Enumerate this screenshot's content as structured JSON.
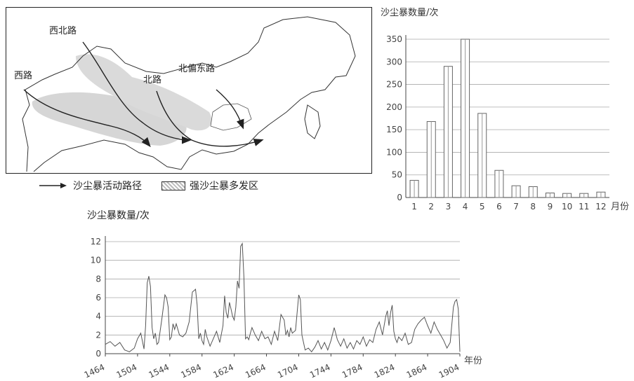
{
  "map": {
    "route_labels": [
      "西北路",
      "西路",
      "北路",
      "北偏东路"
    ],
    "legend": {
      "route_label": "沙尘暴活动路径",
      "area_label": "强沙尘暴多发区"
    }
  },
  "chart_data": [
    {
      "type": "bar",
      "ylabel": "沙尘暴数量/次",
      "xunit": "月份",
      "categories": [
        "1",
        "2",
        "3",
        "4",
        "5",
        "6",
        "7",
        "8",
        "9",
        "10",
        "11",
        "12"
      ],
      "values": [
        38,
        168,
        290,
        350,
        186,
        60,
        26,
        24,
        10,
        9,
        9,
        12
      ],
      "ylim": [
        0,
        350
      ],
      "yticks": [
        0,
        50,
        100,
        150,
        200,
        250,
        300,
        350
      ],
      "grid": true
    },
    {
      "type": "line",
      "ylabel": "沙尘暴数量/次",
      "xunit": "年份",
      "xticks": [
        1464,
        1504,
        1544,
        1584,
        1624,
        1664,
        1704,
        1744,
        1784,
        1824,
        1864,
        1904
      ],
      "yticks": [
        0,
        2,
        4,
        6,
        8,
        10,
        12
      ],
      "ylim": [
        0,
        12
      ],
      "xlim": [
        1464,
        1904
      ],
      "grid": true,
      "x": [
        1464,
        1470,
        1476,
        1482,
        1488,
        1494,
        1500,
        1504,
        1508,
        1512,
        1514,
        1516,
        1518,
        1520,
        1522,
        1524,
        1526,
        1528,
        1530,
        1534,
        1538,
        1540,
        1542,
        1544,
        1546,
        1548,
        1550,
        1552,
        1556,
        1560,
        1564,
        1568,
        1572,
        1576,
        1578,
        1580,
        1582,
        1584,
        1586,
        1588,
        1590,
        1594,
        1598,
        1602,
        1606,
        1610,
        1612,
        1614,
        1616,
        1618,
        1620,
        1622,
        1624,
        1626,
        1628,
        1630,
        1632,
        1634,
        1636,
        1638,
        1640,
        1642,
        1644,
        1646,
        1650,
        1654,
        1658,
        1662,
        1666,
        1670,
        1674,
        1678,
        1682,
        1686,
        1688,
        1690,
        1692,
        1694,
        1696,
        1700,
        1702,
        1704,
        1706,
        1708,
        1710,
        1712,
        1716,
        1720,
        1724,
        1728,
        1732,
        1736,
        1740,
        1744,
        1748,
        1752,
        1756,
        1760,
        1764,
        1768,
        1772,
        1776,
        1780,
        1784,
        1788,
        1792,
        1796,
        1800,
        1804,
        1808,
        1812,
        1814,
        1816,
        1818,
        1820,
        1822,
        1824,
        1826,
        1828,
        1832,
        1836,
        1840,
        1844,
        1848,
        1852,
        1856,
        1860,
        1864,
        1868,
        1872,
        1876,
        1880,
        1884,
        1888,
        1892,
        1896,
        1898,
        1900,
        1902,
        1904
      ],
      "y": [
        1.0,
        1.3,
        0.8,
        1.2,
        0.4,
        0.2,
        0.6,
        1.6,
        2.2,
        0.5,
        3.0,
        7.6,
        8.3,
        7.2,
        2.8,
        1.6,
        2.2,
        1.0,
        1.2,
        3.6,
        6.3,
        6.0,
        5.0,
        1.5,
        1.8,
        3.2,
        2.6,
        3.2,
        2.0,
        1.8,
        2.2,
        3.4,
        6.6,
        6.9,
        5.2,
        1.6,
        2.2,
        1.4,
        1.0,
        2.6,
        1.8,
        0.8,
        1.6,
        2.4,
        1.2,
        3.0,
        6.2,
        4.4,
        3.8,
        5.5,
        4.8,
        4.0,
        3.6,
        5.0,
        7.8,
        7.0,
        11.5,
        11.8,
        8.2,
        1.6,
        1.8,
        1.5,
        2.2,
        2.8,
        2.0,
        1.4,
        2.4,
        1.6,
        1.8,
        1.0,
        2.4,
        1.4,
        4.2,
        3.6,
        2.0,
        2.5,
        1.8,
        2.8,
        2.2,
        2.5,
        4.4,
        6.3,
        5.8,
        2.0,
        1.2,
        0.4,
        0.6,
        0.2,
        0.7,
        1.4,
        0.5,
        1.2,
        0.4,
        1.4,
        2.8,
        1.5,
        0.8,
        1.6,
        0.6,
        1.2,
        0.5,
        1.4,
        1.0,
        1.8,
        0.8,
        1.5,
        1.2,
        2.6,
        3.4,
        2.0,
        4.0,
        4.6,
        3.0,
        4.4,
        5.2,
        2.4,
        1.6,
        1.2,
        1.8,
        1.4,
        2.2,
        1.0,
        1.2,
        2.6,
        3.2,
        3.6,
        3.9,
        3.0,
        2.2,
        3.4,
        2.6,
        2.0,
        1.4,
        0.6,
        1.2,
        5.0,
        5.6,
        5.8,
        4.8,
        0.2
      ]
    }
  ]
}
